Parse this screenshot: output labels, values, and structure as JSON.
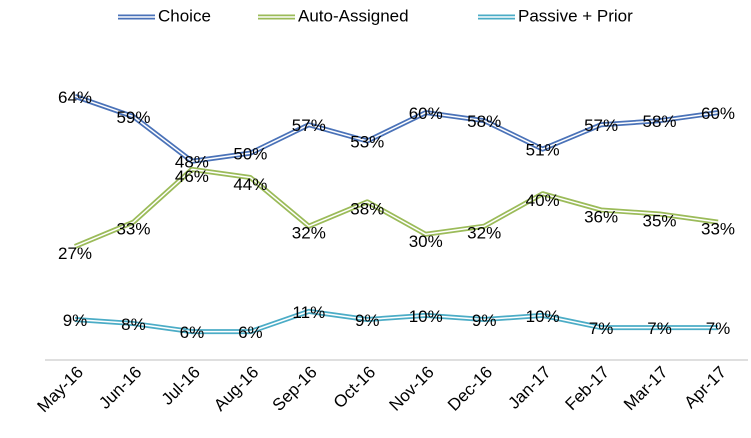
{
  "chart_data": {
    "type": "line",
    "categories": [
      "May-16",
      "Jun-16",
      "Jul-16",
      "Aug-16",
      "Sep-16",
      "Oct-16",
      "Nov-16",
      "Dec-16",
      "Jan-17",
      "Feb-17",
      "Mar-17",
      "Apr-17"
    ],
    "series": [
      {
        "name": "Choice",
        "color": "#4a72b8",
        "values": [
          64,
          59,
          48,
          50,
          57,
          53,
          60,
          58,
          51,
          57,
          58,
          60
        ],
        "value_labels": [
          "64%",
          "59%",
          "48%",
          "50%",
          "57%",
          "53%",
          "60%",
          "58%",
          "51%",
          "57%",
          "58%",
          "60%"
        ]
      },
      {
        "name": "Auto-Assigned",
        "color": "#9bbb59",
        "values": [
          27,
          33,
          46,
          44,
          32,
          38,
          30,
          32,
          40,
          36,
          35,
          33
        ],
        "value_labels": [
          "27%",
          "33%",
          "46%",
          "44%",
          "32%",
          "38%",
          "30%",
          "32%",
          "40%",
          "36%",
          "35%",
          "33%"
        ]
      },
      {
        "name": "Passive + Prior",
        "color": "#4bacc6",
        "values": [
          9,
          8,
          6,
          6,
          11,
          9,
          10,
          9,
          10,
          7,
          7,
          7
        ],
        "value_labels": [
          "9%",
          "8%",
          "6%",
          "6%",
          "11%",
          "9%",
          "10%",
          "9%",
          "10%",
          "7%",
          "7%",
          "7%"
        ]
      }
    ],
    "ylim": [
      0,
      70
    ],
    "legend": "top"
  }
}
